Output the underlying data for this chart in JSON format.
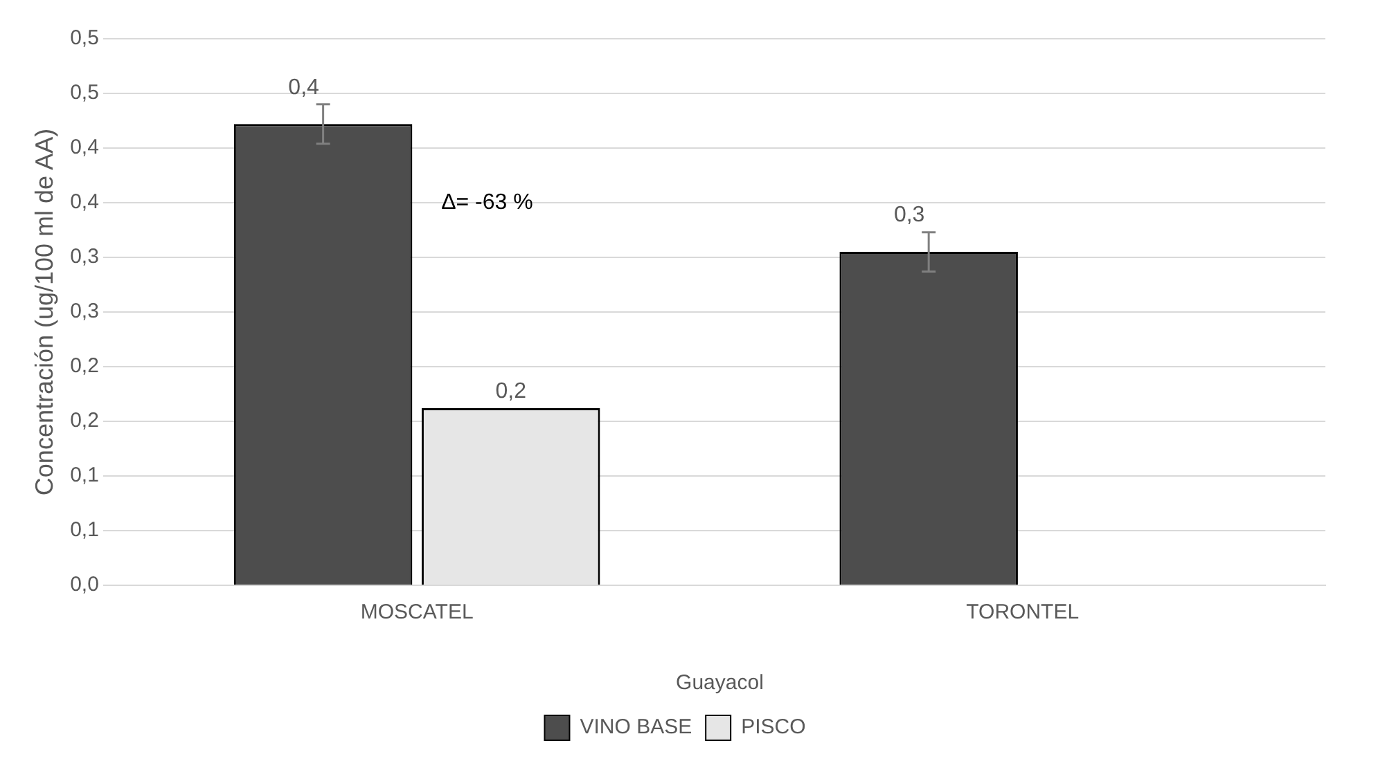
{
  "chart_data": {
    "type": "bar",
    "categories": [
      "MOSCATEL",
      "TORONTEL"
    ],
    "series": [
      {
        "name": "VINO BASE",
        "color": "#4d4d4d",
        "values": [
          0.422,
          0.305
        ],
        "errors": [
          0.018,
          0.018
        ],
        "value_labels": [
          "0,4",
          "0,3"
        ]
      },
      {
        "name": "PISCO",
        "color": "#e6e6e6",
        "values": [
          0.162,
          null
        ],
        "value_labels": [
          "0,2",
          null
        ]
      }
    ],
    "xlabel": "Guayacol",
    "ylabel": "Concentración (ug/100 ml de AA)",
    "ylim": [
      0,
      0.5
    ],
    "yticks": [
      {
        "value": 0,
        "label": "0,0"
      },
      {
        "value": 0.05,
        "label": "0,1"
      },
      {
        "value": 0.1,
        "label": "0,1"
      },
      {
        "value": 0.15,
        "label": "0,2"
      },
      {
        "value": 0.2,
        "label": "0,2"
      },
      {
        "value": 0.25,
        "label": "0,3"
      },
      {
        "value": 0.3,
        "label": "0,3"
      },
      {
        "value": 0.35,
        "label": "0,4"
      },
      {
        "value": 0.4,
        "label": "0,4"
      },
      {
        "value": 0.45,
        "label": "0,5"
      },
      {
        "value": 0.5,
        "label": "0,5"
      }
    ],
    "annotations": [
      "Δ= -63 %"
    ],
    "grid": "y",
    "legend": "bottom"
  }
}
